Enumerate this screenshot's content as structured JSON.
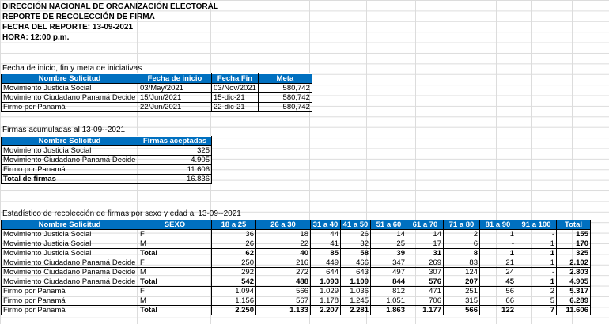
{
  "header": {
    "line1": "DIRECCIÓN NACIONAL DE ORGANIZACIÓN ELECTORAL",
    "line2": "REPORTE DE RECOLECCIÓN DE FIRMA",
    "line3": "FECHA DEL REPORTE: 13-09-2021",
    "line4": "HORA: 12:00 p.m."
  },
  "table1": {
    "caption": "Fecha de inicio, fin y meta de iniciativas",
    "headers": [
      "Nombre Solicitud",
      "Fecha de inicio",
      "Fecha Fin",
      "Meta"
    ],
    "rows": [
      [
        "Movimiento Justicia Social",
        "03/May/2021",
        "03/Nov/2021",
        "580,742"
      ],
      [
        "Movimiento Ciudadano Panamá Decide",
        "15/Jun/2021",
        "15-dic-21",
        "580,742"
      ],
      [
        "Firmo por Panamá",
        "22/Jun/2021",
        "22-dic-21",
        "580,742"
      ]
    ]
  },
  "table2": {
    "caption": "Firmas acumuladas al 13-09--2021",
    "headers": [
      "Nombre Solicitud",
      "Firmas aceptadas"
    ],
    "rows": [
      [
        "Movimiento Justicia Social",
        "325"
      ],
      [
        "Movimiento Ciudadano Panamá Decide",
        "4.905"
      ],
      [
        "Firmo por Panamá",
        "11.606"
      ]
    ],
    "total": [
      "Total de firmas",
      "16.836"
    ]
  },
  "table3": {
    "caption": "Estadístico de recolección de firmas por sexo y edad al 13-09--2021",
    "headers": [
      "Nombre Solicitud",
      "SEXO",
      "18 a 25",
      "26 a 30",
      "31 a 40",
      "41 a 50",
      "51 a 60",
      "61 a 70",
      "71 a 80",
      "81 a 90",
      "91 a 100",
      "Total"
    ],
    "rows": [
      {
        "name": "Movimiento Justicia Social",
        "sexo": "F",
        "vals": [
          "36",
          "18",
          "44",
          "26",
          "14",
          "14",
          "2",
          "1",
          "-",
          "155"
        ],
        "total": false
      },
      {
        "name": "Movimiento Justicia Social",
        "sexo": "M",
        "vals": [
          "26",
          "22",
          "41",
          "32",
          "25",
          "17",
          "6",
          "-",
          "1",
          "170"
        ],
        "total": false
      },
      {
        "name": "Movimiento Justicia Social",
        "sexo": "Total",
        "vals": [
          "62",
          "40",
          "85",
          "58",
          "39",
          "31",
          "8",
          "1",
          "1",
          "325"
        ],
        "total": true
      },
      {
        "name": "Movimiento Ciudadano Panamá Decide",
        "sexo": "F",
        "vals": [
          "250",
          "216",
          "449",
          "466",
          "347",
          "269",
          "83",
          "21",
          "1",
          "2.102"
        ],
        "total": false
      },
      {
        "name": "Movimiento Ciudadano Panamá Decide",
        "sexo": "M",
        "vals": [
          "292",
          "272",
          "644",
          "643",
          "497",
          "307",
          "124",
          "24",
          "-",
          "2.803"
        ],
        "total": false
      },
      {
        "name": "Movimiento Ciudadano Panamá Decide",
        "sexo": "Total",
        "vals": [
          "542",
          "488",
          "1.093",
          "1.109",
          "844",
          "576",
          "207",
          "45",
          "1",
          "4.905"
        ],
        "total": true
      },
      {
        "name": "Firmo por Panamá",
        "sexo": "F",
        "vals": [
          "1.094",
          "566",
          "1.029",
          "1.036",
          "812",
          "471",
          "251",
          "56",
          "2",
          "5.317"
        ],
        "total": false
      },
      {
        "name": "Firmo por Panamá",
        "sexo": "M",
        "vals": [
          "1.156",
          "567",
          "1.178",
          "1.245",
          "1.051",
          "706",
          "315",
          "66",
          "5",
          "6.289"
        ],
        "total": false
      },
      {
        "name": "Firmo por Panamá",
        "sexo": "Total",
        "vals": [
          "2.250",
          "1.133",
          "2.207",
          "2.281",
          "1.863",
          "1.177",
          "566",
          "122",
          "7",
          "11.606"
        ],
        "total": true
      }
    ]
  }
}
